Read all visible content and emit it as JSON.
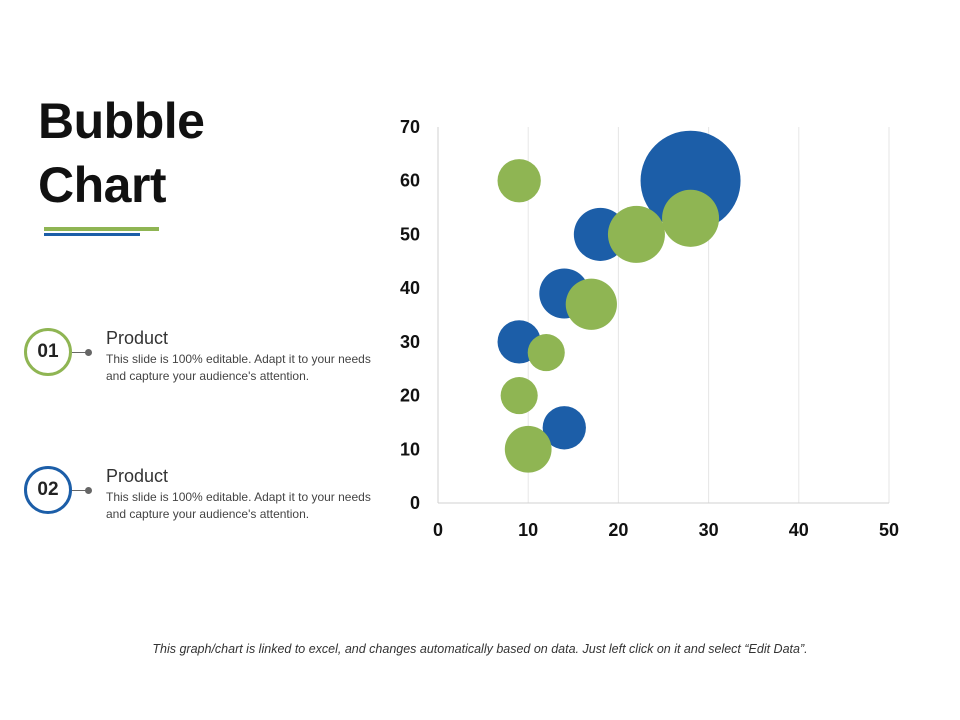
{
  "slide": {
    "title_line1": "Bubble",
    "title_line2": "Chart",
    "accent_green": "#8FB553",
    "accent_blue": "#1C5EA8",
    "footnote": "This graph/chart is linked to excel, and changes automatically based on data. Just left click on it and select “Edit Data”."
  },
  "items": [
    {
      "number": "01",
      "title": "Product",
      "description": "This slide is 100% editable. Adapt it to your needs and capture your audience's attention.",
      "color": "#8FB553"
    },
    {
      "number": "02",
      "title": "Product",
      "description": "This slide is 100% editable. Adapt it to your needs and capture your audience's attention.",
      "color": "#1C5EA8"
    }
  ],
  "chart_data": {
    "type": "bubble",
    "title": "",
    "xlabel": "",
    "ylabel": "",
    "xlim": [
      0,
      50
    ],
    "ylim": [
      0,
      70
    ],
    "xticks": [
      0,
      10,
      20,
      30,
      40,
      50
    ],
    "yticks": [
      0,
      10,
      20,
      30,
      40,
      50,
      60,
      70
    ],
    "grid": "vertical",
    "legend": "none",
    "series": [
      {
        "color": "#1C5EA8",
        "points": [
          {
            "x": 9,
            "y": 30,
            "size": 3
          },
          {
            "x": 14,
            "y": 39,
            "size": 4
          },
          {
            "x": 14,
            "y": 14,
            "size": 3
          },
          {
            "x": 18,
            "y": 50,
            "size": 4.5
          },
          {
            "x": 28,
            "y": 60,
            "size": 16
          }
        ]
      },
      {
        "color": "#8FB553",
        "points": [
          {
            "x": 9,
            "y": 60,
            "size": 3
          },
          {
            "x": 9,
            "y": 20,
            "size": 2.2
          },
          {
            "x": 10,
            "y": 10,
            "size": 3.5
          },
          {
            "x": 12,
            "y": 28,
            "size": 2.2
          },
          {
            "x": 17,
            "y": 37,
            "size": 4.2
          },
          {
            "x": 22,
            "y": 50,
            "size": 5.2
          },
          {
            "x": 28,
            "y": 53,
            "size": 5.2
          }
        ]
      }
    ]
  }
}
